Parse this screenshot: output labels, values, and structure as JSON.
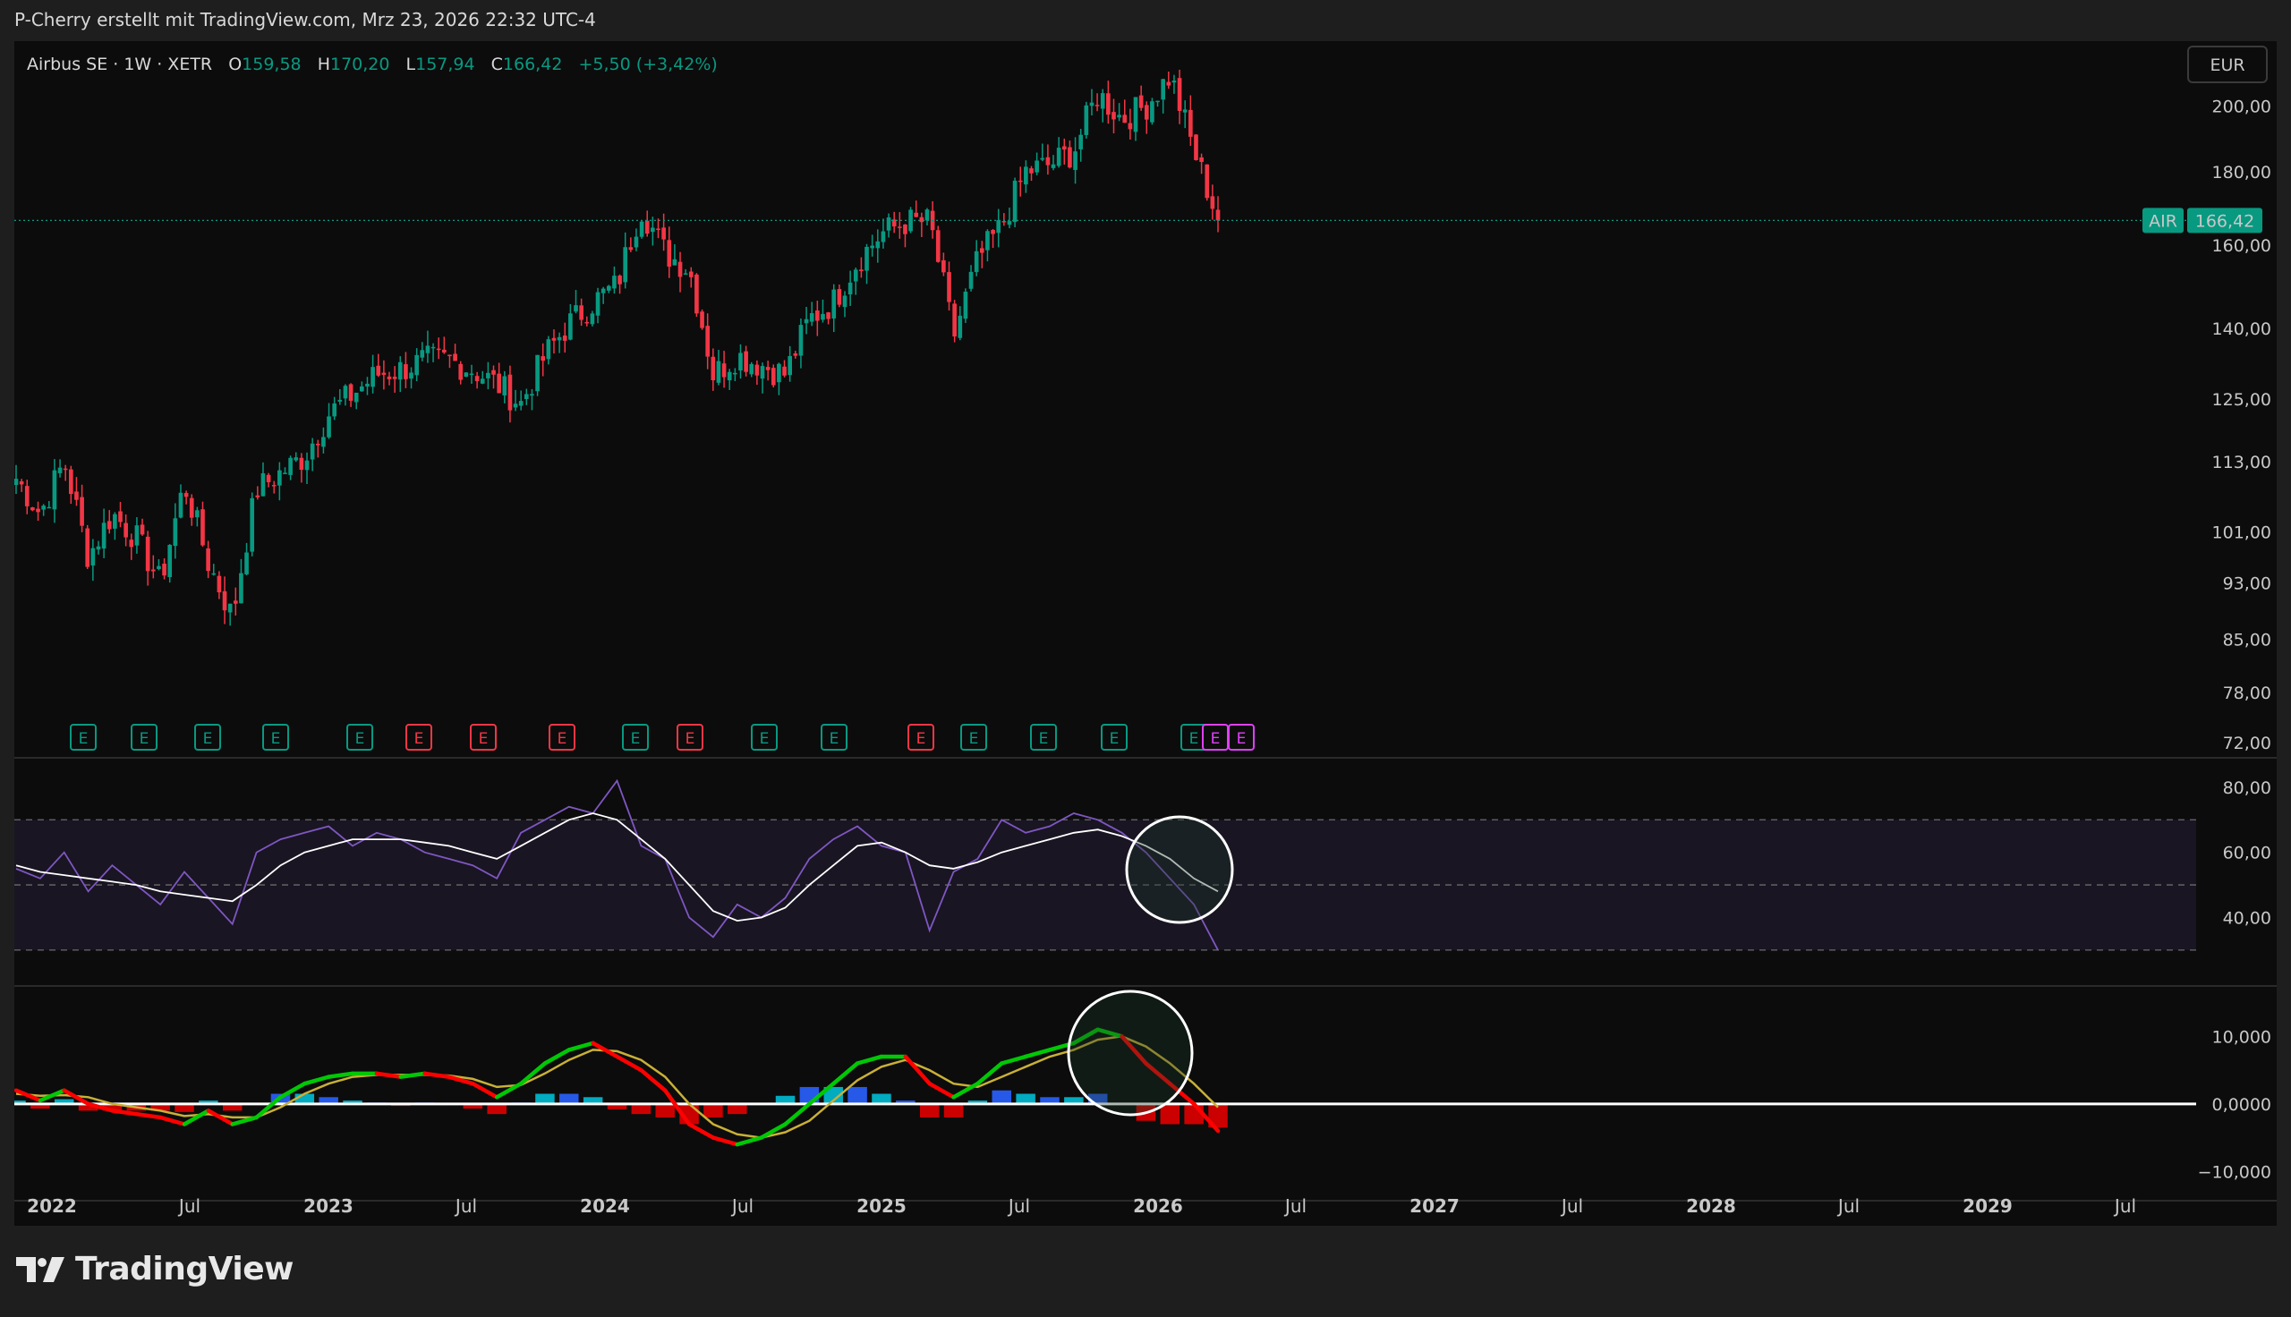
{
  "header": {
    "text": "P-Cherry erstellt mit TradingView.com, Mrz 23, 2026 22:32 UTC-4"
  },
  "legend": {
    "symbol": "Airbus SE · 1W · XETR",
    "o_label": "O",
    "o_value": "159,58",
    "h_label": "H",
    "h_value": "170,20",
    "l_label": "L",
    "l_value": "157,94",
    "c_label": "C",
    "c_value": "166,42",
    "change": "+5,50 (+3,42%)"
  },
  "currency_button": "EUR",
  "price_tag": {
    "ticker": "AIR",
    "value": "166,42"
  },
  "footer": {
    "brand": "TradingView"
  },
  "colors": {
    "up": "#089981",
    "down": "#f23645",
    "rsi": "#7e57c2",
    "rsi_ma": "#ffffff",
    "macd_up": "#00c805",
    "macd_down": "#ff0000",
    "signal": "#c9b037",
    "hist_pos": "#2962ff",
    "hist_pos2": "#00bcd4",
    "hist_neg": "#e00000",
    "earnings_past": "#089981",
    "earnings_red": "#f23645",
    "earnings_future": "#e040fb"
  },
  "chart_data": [
    {
      "type": "candlestick",
      "panel": "price",
      "symbol": "AIR",
      "timeframe": "1W",
      "y_scale": "log",
      "ylim": [
        72,
        215
      ],
      "y_ticks": [
        "200,00",
        "180,00",
        "160,00",
        "140,00",
        "125,00",
        "113,00",
        "101,00",
        "93,00",
        "85,00",
        "78,00",
        "72,00"
      ],
      "last_price": 166.42,
      "anchor_points": [
        {
          "x": "2022-01",
          "y": 110
        },
        {
          "x": "2022-02",
          "y": 104
        },
        {
          "x": "2022-03",
          "y": 113
        },
        {
          "x": "2022-04",
          "y": 97
        },
        {
          "x": "2022-05",
          "y": 104
        },
        {
          "x": "2022-06",
          "y": 100
        },
        {
          "x": "2022-07",
          "y": 93
        },
        {
          "x": "2022-08",
          "y": 109
        },
        {
          "x": "2022-09",
          "y": 96
        },
        {
          "x": "2022-10",
          "y": 88
        },
        {
          "x": "2022-11",
          "y": 108
        },
        {
          "x": "2022-12",
          "y": 111
        },
        {
          "x": "2023-01",
          "y": 114
        },
        {
          "x": "2023-02",
          "y": 122
        },
        {
          "x": "2023-03",
          "y": 126
        },
        {
          "x": "2023-04",
          "y": 130
        },
        {
          "x": "2023-05",
          "y": 131
        },
        {
          "x": "2023-06",
          "y": 133
        },
        {
          "x": "2023-07",
          "y": 133
        },
        {
          "x": "2023-08",
          "y": 131
        },
        {
          "x": "2023-09",
          "y": 128
        },
        {
          "x": "2023-10",
          "y": 124
        },
        {
          "x": "2023-11",
          "y": 134
        },
        {
          "x": "2023-12",
          "y": 141
        },
        {
          "x": "2024-01",
          "y": 146
        },
        {
          "x": "2024-02",
          "y": 150
        },
        {
          "x": "2024-03",
          "y": 170
        },
        {
          "x": "2024-04",
          "y": 158
        },
        {
          "x": "2024-05",
          "y": 154
        },
        {
          "x": "2024-06",
          "y": 130
        },
        {
          "x": "2024-07",
          "y": 134
        },
        {
          "x": "2024-08",
          "y": 132
        },
        {
          "x": "2024-09",
          "y": 130
        },
        {
          "x": "2024-10",
          "y": 142
        },
        {
          "x": "2024-11",
          "y": 146
        },
        {
          "x": "2024-12",
          "y": 156
        },
        {
          "x": "2025-01",
          "y": 163
        },
        {
          "x": "2025-02",
          "y": 166
        },
        {
          "x": "2025-03",
          "y": 166
        },
        {
          "x": "2025-04",
          "y": 138
        },
        {
          "x": "2025-05",
          "y": 156
        },
        {
          "x": "2025-06",
          "y": 165
        },
        {
          "x": "2025-07",
          "y": 180
        },
        {
          "x": "2025-08",
          "y": 182
        },
        {
          "x": "2025-09",
          "y": 186
        },
        {
          "x": "2025-10",
          "y": 204
        },
        {
          "x": "2025-11",
          "y": 196
        },
        {
          "x": "2025-12",
          "y": 200
        },
        {
          "x": "2026-01",
          "y": 210
        },
        {
          "x": "2026-02",
          "y": 186
        },
        {
          "x": "2026-03",
          "y": 166.42
        }
      ],
      "earnings_markers": [
        "E",
        "E",
        "E",
        "E",
        "E",
        "E",
        "E",
        "E",
        "E",
        "E",
        "E",
        "E",
        "E",
        "E",
        "E",
        "E",
        "E",
        "E",
        "E"
      ]
    },
    {
      "type": "line",
      "panel": "rsi",
      "ylim": [
        22,
        86
      ],
      "y_ticks": [
        "80,00",
        "60,00",
        "40,00"
      ],
      "levels": [
        70,
        50,
        30
      ],
      "series": [
        {
          "values": [
            55,
            52,
            60,
            48,
            56,
            50,
            44,
            54,
            46,
            38,
            60,
            64,
            66,
            68,
            62,
            66,
            64,
            60,
            58,
            56,
            52,
            66,
            70,
            74,
            72,
            82,
            62,
            58,
            40,
            34,
            44,
            40,
            46,
            58,
            64,
            68,
            62,
            60,
            36,
            54,
            58,
            70,
            66,
            68,
            72,
            70,
            66,
            60,
            52,
            44,
            30
          ]
        },
        {
          "values": [
            56,
            54,
            53,
            52,
            51,
            50,
            48,
            47,
            46,
            45,
            50,
            56,
            60,
            62,
            64,
            64,
            64,
            63,
            62,
            60,
            58,
            62,
            66,
            70,
            72,
            70,
            64,
            58,
            50,
            42,
            39,
            40,
            43,
            50,
            56,
            62,
            63,
            60,
            56,
            55,
            57,
            60,
            62,
            64,
            66,
            67,
            65,
            62,
            58,
            52,
            48
          ]
        }
      ]
    },
    {
      "type": "line",
      "panel": "macd",
      "ylim": [
        -13,
        16
      ],
      "y_ticks": [
        "10,000",
        "0,0000",
        "−10,000"
      ],
      "series": [
        {
          "values": [
            2,
            0.5,
            2,
            0,
            -1,
            -1.5,
            -2,
            -3,
            -1,
            -3,
            -2,
            1,
            3,
            4,
            4.5,
            4.5,
            4,
            4.5,
            4,
            3,
            1,
            3,
            6,
            8,
            9,
            7,
            5,
            2,
            -3,
            -5,
            -6,
            -5,
            -3,
            0,
            3,
            6,
            7,
            7,
            3,
            1,
            3,
            6,
            7,
            8,
            9,
            11,
            10,
            6,
            3,
            0,
            -4
          ]
        },
        {
          "values": [
            1.5,
            1.2,
            1.3,
            1,
            0,
            -0.5,
            -1,
            -1.8,
            -1.5,
            -2,
            -2,
            -0.5,
            1.5,
            3,
            4,
            4.3,
            4.3,
            4.3,
            4.2,
            3.7,
            2.5,
            2.8,
            4.5,
            6.5,
            8,
            7.8,
            6.5,
            4,
            0,
            -3,
            -4.5,
            -5,
            -4.2,
            -2.5,
            0.5,
            3.5,
            5.5,
            6.5,
            5,
            3,
            2.5,
            4,
            5.5,
            7,
            8,
            9.5,
            10,
            8.5,
            6,
            3,
            -0.5
          ]
        }
      ],
      "histogram": [
        0.5,
        -0.7,
        0.7,
        -1,
        -1,
        -1,
        -1,
        -1.2,
        0.5,
        -1,
        0,
        1.5,
        1.5,
        1,
        0.5,
        0.2,
        -0.3,
        0.2,
        -0.2,
        -0.7,
        -1.5,
        0.2,
        1.5,
        1.5,
        1,
        -0.8,
        -1.5,
        -2,
        -3,
        -2,
        -1.5,
        0,
        1.2,
        2.5,
        2.5,
        2.5,
        1.5,
        0.5,
        -2,
        -2,
        0.5,
        2,
        1.5,
        1,
        1,
        1.5,
        0,
        -2.5,
        -3,
        -3,
        -3.5
      ]
    }
  ],
  "time_axis": [
    {
      "label": "2022",
      "year": true
    },
    {
      "label": "Jul",
      "year": false
    },
    {
      "label": "2023",
      "year": true
    },
    {
      "label": "Jul",
      "year": false
    },
    {
      "label": "2024",
      "year": true
    },
    {
      "label": "Jul",
      "year": false
    },
    {
      "label": "2025",
      "year": true
    },
    {
      "label": "Jul",
      "year": false
    },
    {
      "label": "2026",
      "year": true
    },
    {
      "label": "Jul",
      "year": false
    },
    {
      "label": "2027",
      "year": true
    },
    {
      "label": "Jul",
      "year": false
    },
    {
      "label": "2028",
      "year": true
    },
    {
      "label": "Jul",
      "year": false
    },
    {
      "label": "2029",
      "year": true
    },
    {
      "label": "Jul",
      "year": false
    }
  ]
}
